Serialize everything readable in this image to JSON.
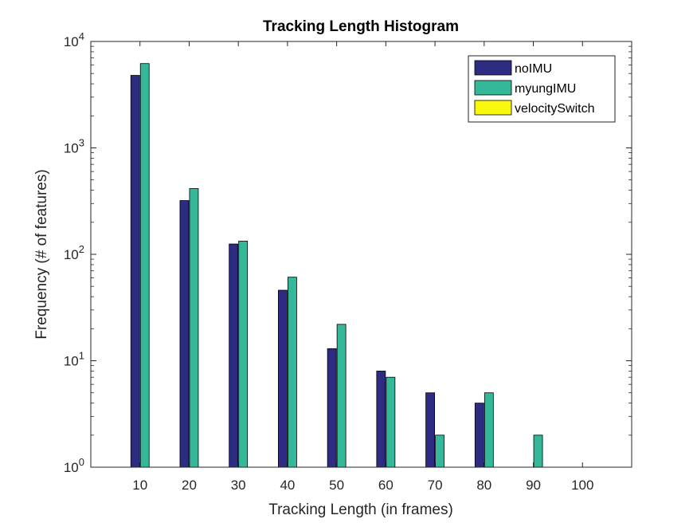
{
  "chart_data": {
    "type": "bar",
    "title": "Tracking Length Histogram",
    "xlabel": "Tracking Length (in frames)",
    "ylabel": "Frequency (# of features)",
    "yscale": "log",
    "ylim": [
      1,
      10000
    ],
    "xlim": [
      0,
      110
    ],
    "grid": false,
    "legend_position": "top-right",
    "categories": [
      10,
      20,
      30,
      40,
      50,
      60,
      70,
      80,
      90,
      100
    ],
    "x_tick_labels": [
      "10",
      "20",
      "30",
      "40",
      "50",
      "60",
      "70",
      "80",
      "90",
      "100"
    ],
    "y_ticks": [
      {
        "value": 1,
        "base": "10",
        "exp": "0"
      },
      {
        "value": 10,
        "base": "10",
        "exp": "1"
      },
      {
        "value": 100,
        "base": "10",
        "exp": "2"
      },
      {
        "value": 1000,
        "base": "10",
        "exp": "3"
      },
      {
        "value": 10000,
        "base": "10",
        "exp": "4"
      }
    ],
    "series": [
      {
        "name": "noIMU",
        "color": "#2e2b83",
        "values": [
          4800,
          320,
          125,
          46,
          13,
          8,
          5,
          4,
          null,
          null
        ]
      },
      {
        "name": "myungIMU",
        "color": "#35b79a",
        "values": [
          6200,
          415,
          133,
          61,
          22,
          7,
          2,
          5,
          2,
          null
        ]
      },
      {
        "name": "velocitySwitch",
        "color": "#f9f90f",
        "values": [
          null,
          null,
          null,
          null,
          null,
          null,
          null,
          null,
          null,
          null
        ]
      }
    ]
  }
}
